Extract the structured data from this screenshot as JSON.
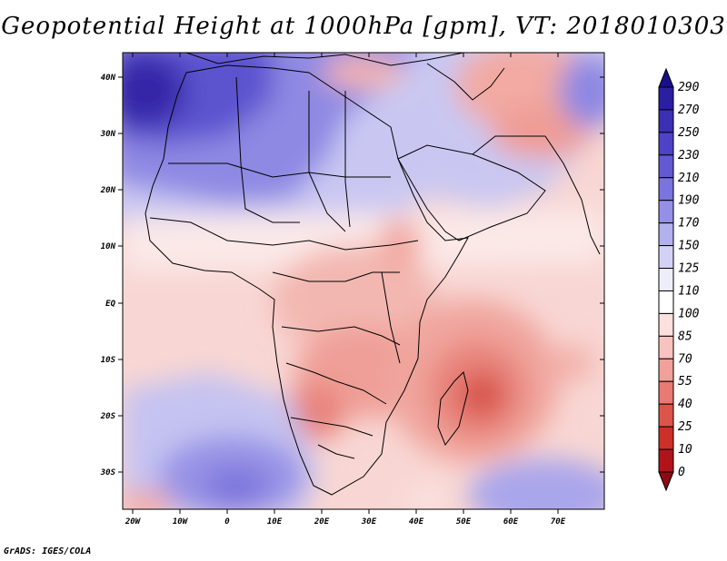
{
  "title": "Geopotential Height at 1000hPa [gpm], VT: 2018010303",
  "credit": "GrADS: IGES/COLA",
  "map": {
    "lat_labels": [
      "40N",
      "30N",
      "20N",
      "10N",
      "EQ",
      "10S",
      "20S",
      "30S"
    ],
    "lon_labels": [
      "20W",
      "10W",
      "0",
      "10E",
      "20E",
      "30E",
      "40E",
      "50E",
      "60E",
      "70E"
    ]
  },
  "colorbar": {
    "labels": [
      "290",
      "270",
      "250",
      "230",
      "210",
      "190",
      "170",
      "150",
      "125",
      "110",
      "100",
      "85",
      "70",
      "55",
      "40",
      "25",
      "10",
      "0"
    ],
    "colors": [
      "#1a0f8c",
      "#2a1fa0",
      "#3b2fb3",
      "#4e43c6",
      "#6259d3",
      "#7a74de",
      "#9590e6",
      "#b3b0ee",
      "#d3d2f6",
      "#eeeefb",
      "#ffffff",
      "#fce0de",
      "#f8c3bf",
      "#f1a09a",
      "#e87a72",
      "#dd544b",
      "#cc3029",
      "#b0141a",
      "#8c0a12"
    ]
  }
}
